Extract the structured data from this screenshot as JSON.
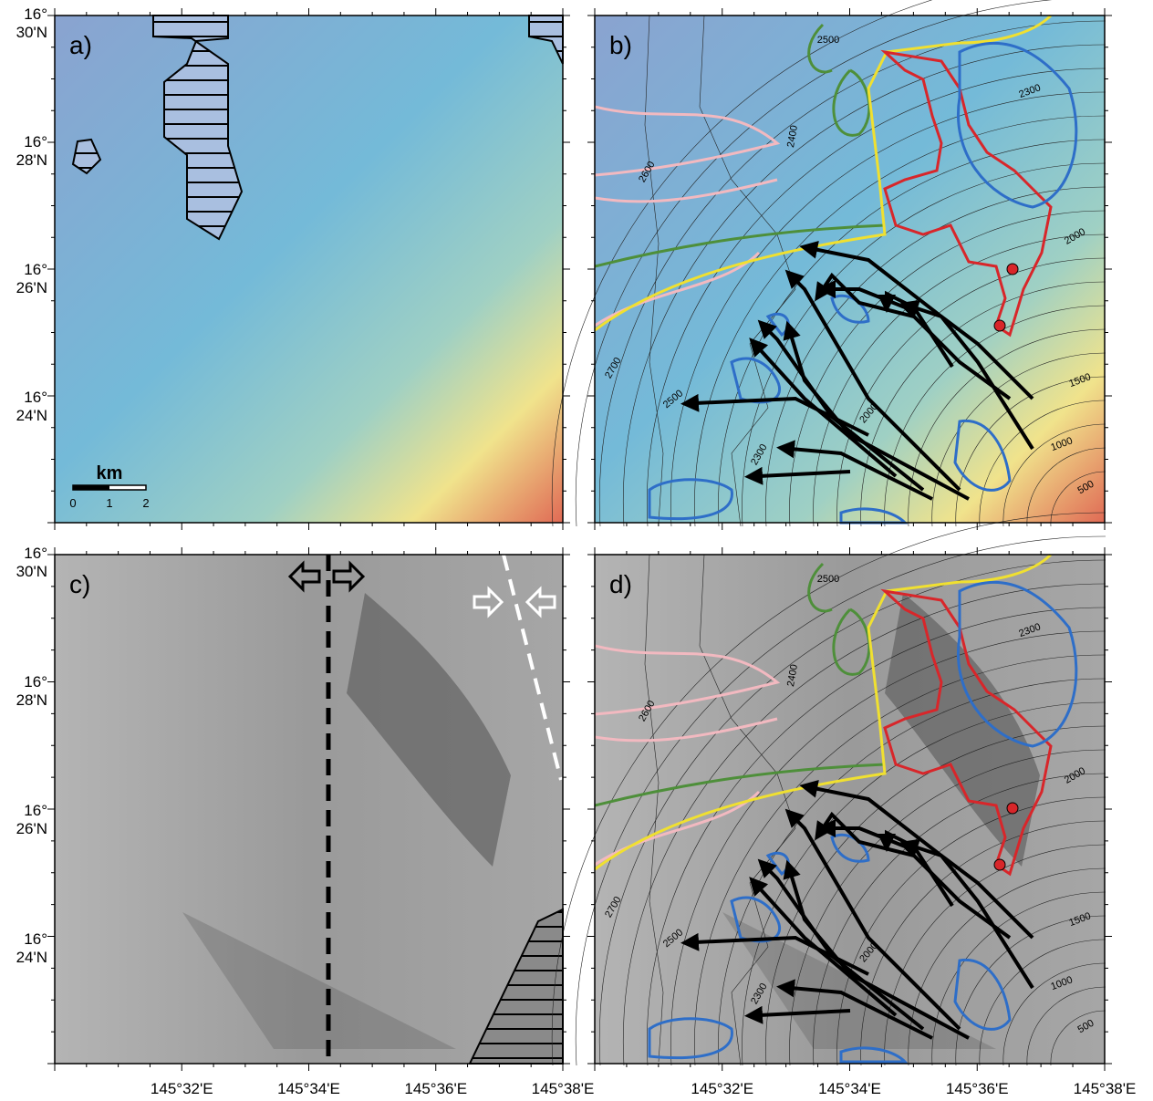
{
  "panels": [
    {
      "label": "a)"
    },
    {
      "label": "b)"
    },
    {
      "label": "c)"
    },
    {
      "label": "d)"
    }
  ],
  "lat_labels": [
    {
      "deg": "16°",
      "min": "30'N"
    },
    {
      "deg": "16°",
      "min": "28'N"
    },
    {
      "deg": "16°",
      "min": "26'N"
    },
    {
      "deg": "16°",
      "min": "24'N"
    }
  ],
  "lon_labels": [
    "145°32'E",
    "145°34'E",
    "145°36'E",
    "145°38'E"
  ],
  "scale_bar": {
    "unit": "km",
    "ticks": [
      "0",
      "1",
      "2"
    ]
  },
  "contour_labels": [
    "2500",
    "2300",
    "2400",
    "2600",
    "2000",
    "2700",
    "2500",
    "2000",
    "1500",
    "1000",
    "500",
    "2300"
  ]
}
